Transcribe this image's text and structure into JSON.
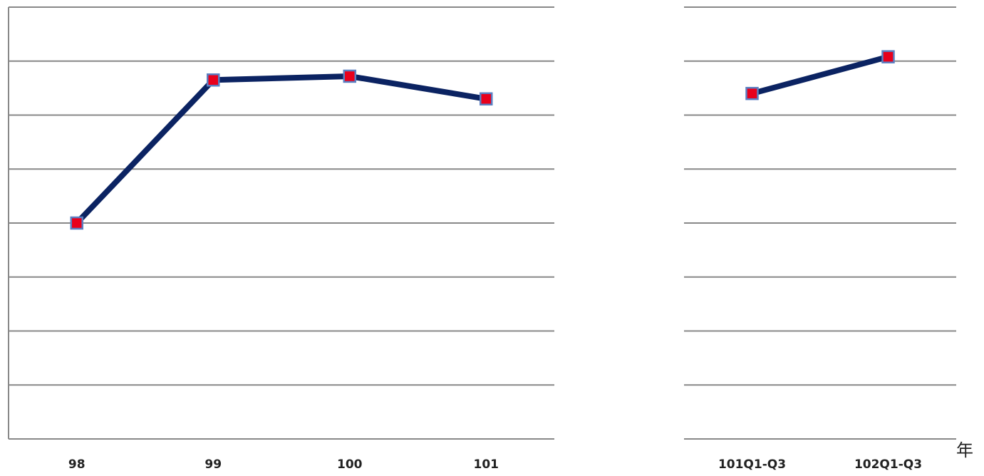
{
  "chart_data": {
    "type": "line",
    "title": "",
    "xlabel": "年",
    "ylabel": "",
    "grid": true,
    "y_gridlines": 8,
    "categories": [
      "98",
      "99",
      "100",
      "101",
      "101Q1-Q3",
      "102Q1-Q3"
    ],
    "series": [
      {
        "values": [
          4.0,
          6.65,
          6.72,
          6.3,
          6.4,
          7.08
        ]
      }
    ],
    "segments": [
      {
        "categories": [
          "98",
          "99",
          "100",
          "101"
        ]
      },
      {
        "categories": [
          "101Q1-Q3",
          "102Q1-Q3"
        ]
      }
    ],
    "ylim": [
      0,
      8
    ],
    "colors": {
      "line": "#0b2362",
      "marker_fill": "#e8001c",
      "marker_edge": "#5b7fc2",
      "grid": "#888888",
      "axis": "#888888"
    }
  }
}
